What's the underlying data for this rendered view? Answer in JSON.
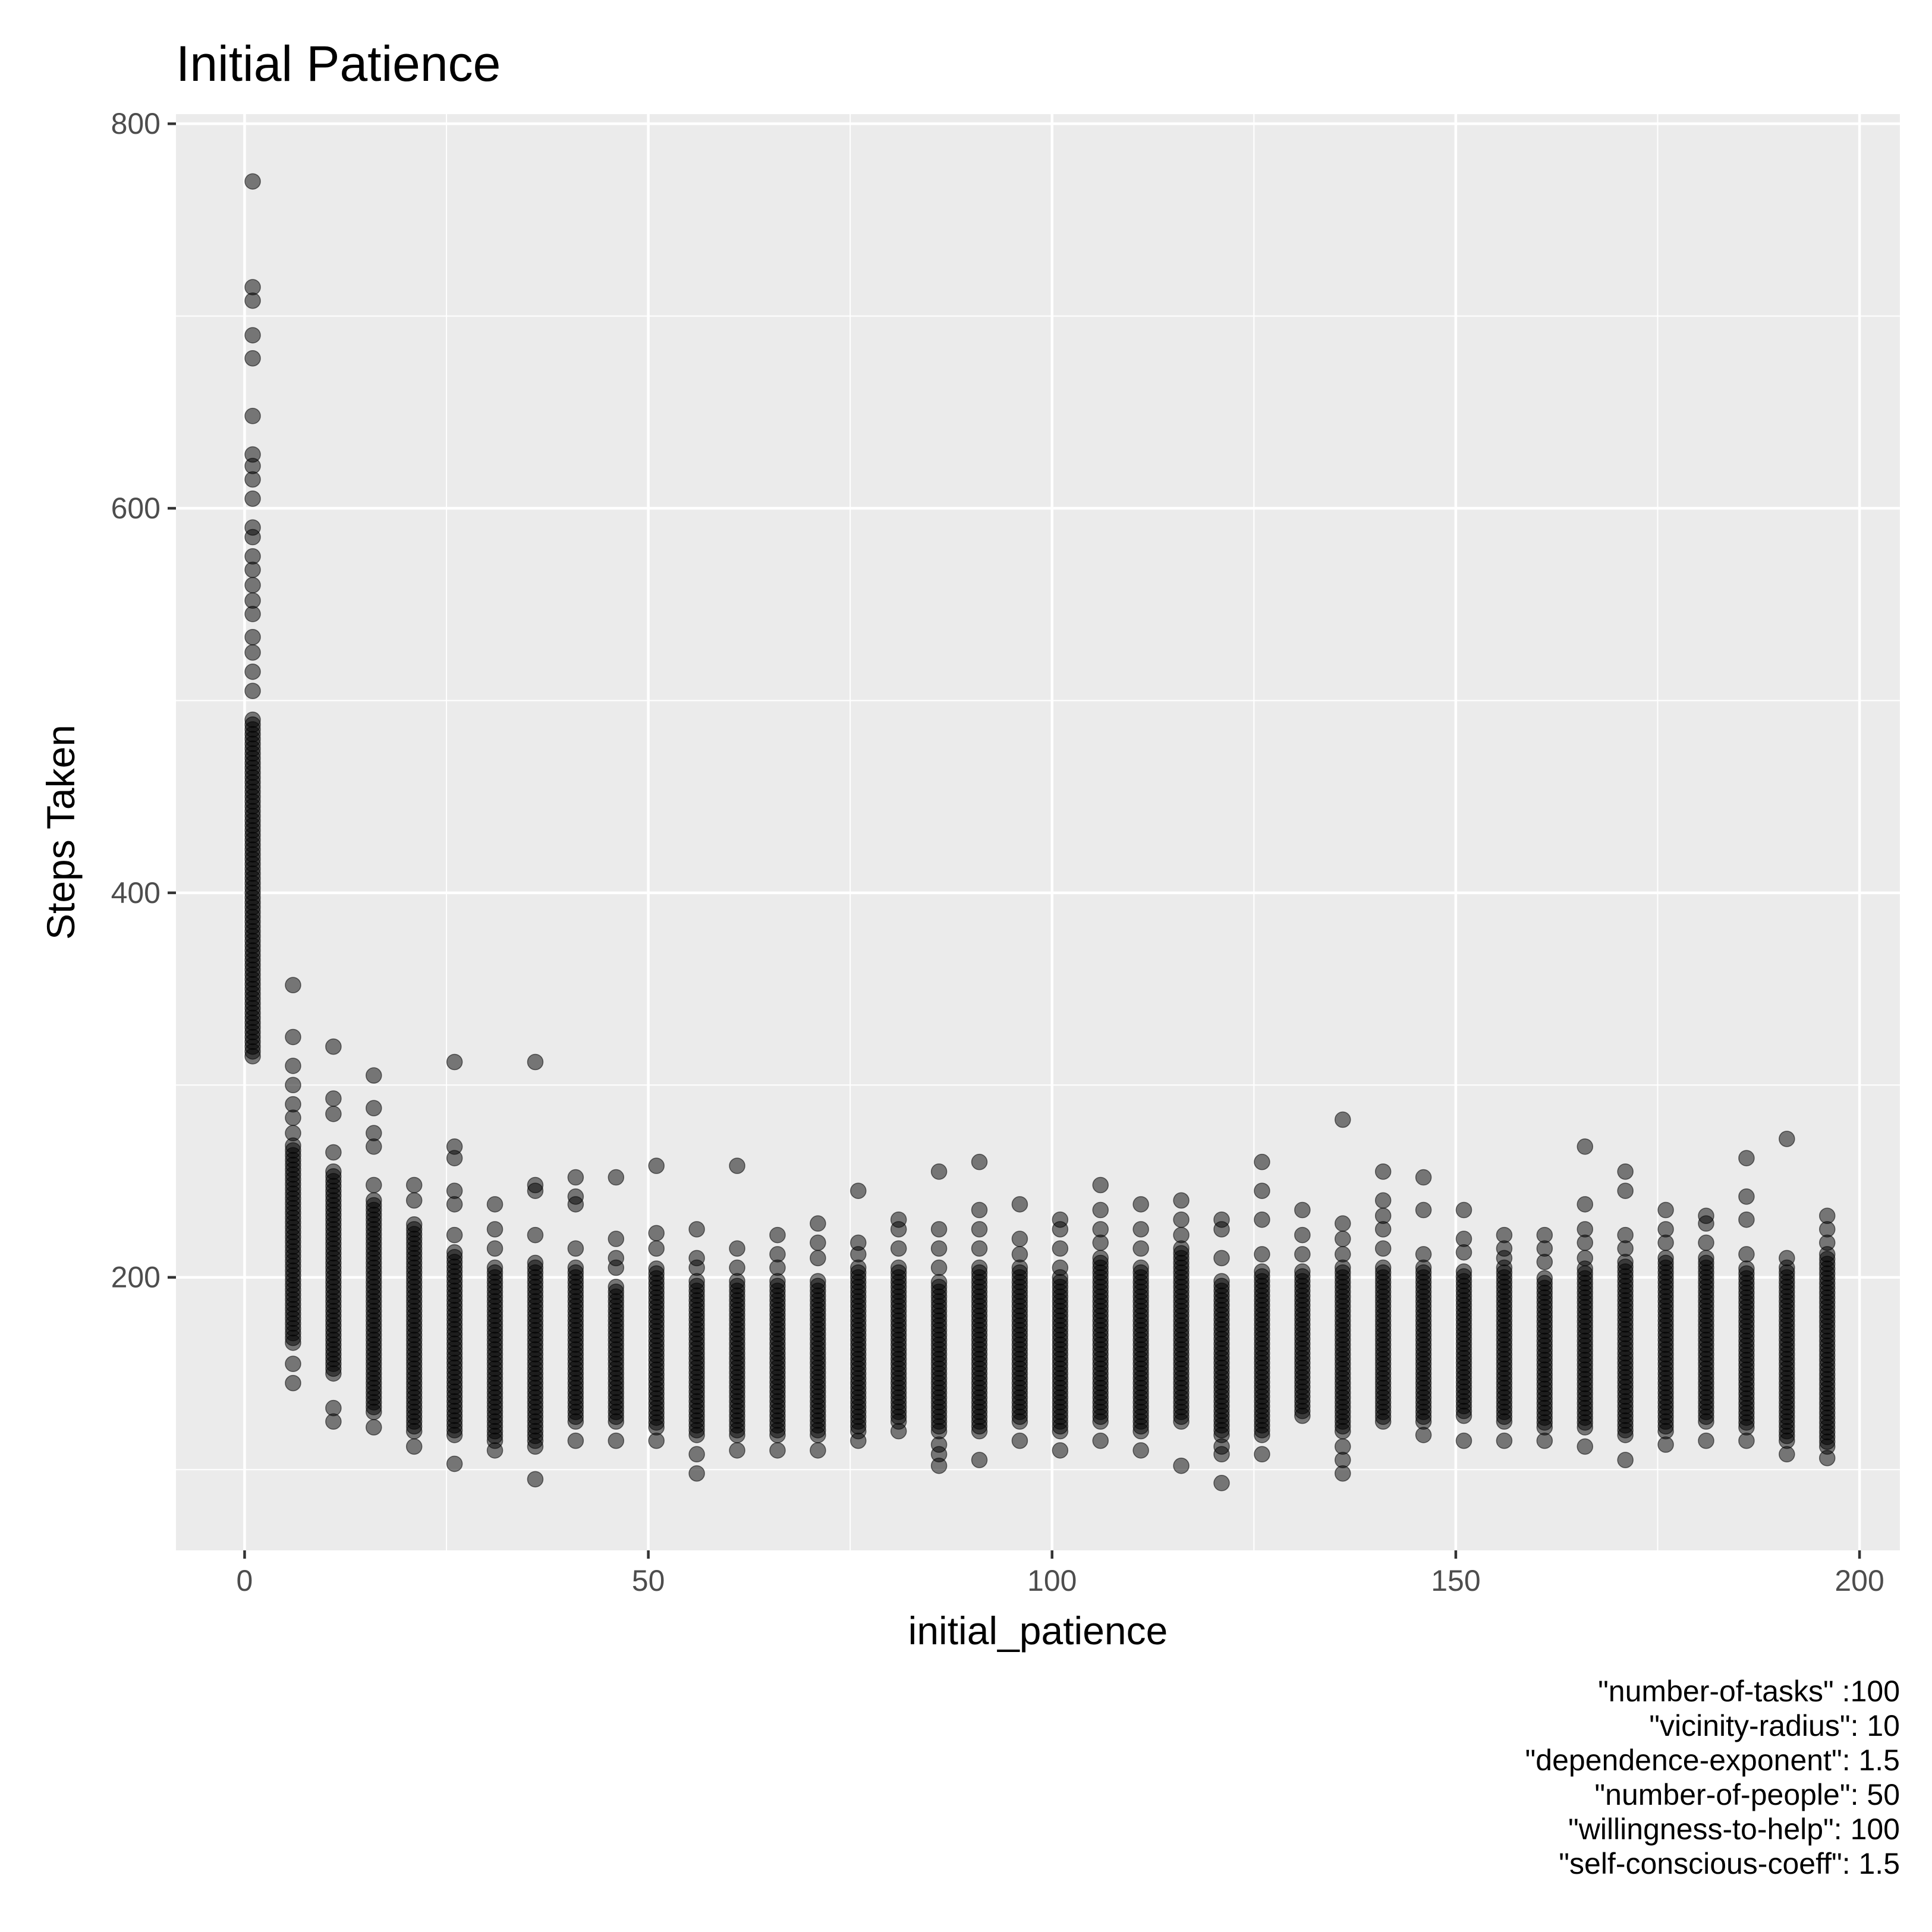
{
  "chart_data": {
    "type": "scatter",
    "title": "Initial Patience",
    "xlabel": "initial_patience",
    "ylabel": "Steps Taken",
    "xlim": [
      -8.5,
      205
    ],
    "ylim": [
      58,
      805
    ],
    "x_ticks": [
      0,
      50,
      100,
      150,
      200
    ],
    "y_ticks": [
      200,
      400,
      600,
      800
    ],
    "grid": true,
    "point_color": "#000000",
    "panel_background": "#ebebeb",
    "caption": [
      "\"number-of-tasks\" :100",
      "\"vicinity-radius\": 10",
      "\"dependence-exponent\": 1.5",
      "\"number-of-people\": 50",
      "\"willingness-to-help\": 100",
      "\"self-conscious-coeff\": 1.5"
    ],
    "groups": [
      {
        "x": 1,
        "low": 315,
        "high": 492,
        "extra": [
          505,
          515,
          525,
          533,
          545,
          552,
          560,
          568,
          575,
          585,
          590,
          605,
          615,
          622,
          628,
          648,
          678,
          690,
          708,
          715,
          770
        ]
      },
      {
        "x": 6,
        "low": 166,
        "high": 270,
        "extra": [
          145,
          155,
          275,
          283,
          290,
          300,
          310,
          325,
          352
        ]
      },
      {
        "x": 11,
        "low": 150,
        "high": 255,
        "extra": [
          125,
          132,
          265,
          285,
          293,
          320
        ]
      },
      {
        "x": 16,
        "low": 130,
        "high": 240,
        "extra": [
          122,
          248,
          268,
          275,
          288,
          305
        ]
      },
      {
        "x": 21,
        "low": 120,
        "high": 228,
        "extra": [
          112,
          240,
          248
        ]
      },
      {
        "x": 26,
        "low": 118,
        "high": 215,
        "extra": [
          103,
          222,
          238,
          245,
          262,
          268,
          312
        ]
      },
      {
        "x": 31,
        "low": 115,
        "high": 205,
        "extra": [
          110,
          215,
          225,
          238
        ]
      },
      {
        "x": 36,
        "low": 115,
        "high": 208,
        "extra": [
          95,
          112,
          222,
          245,
          248,
          312
        ]
      },
      {
        "x": 41,
        "low": 125,
        "high": 205,
        "extra": [
          115,
          215,
          238,
          242,
          252
        ]
      },
      {
        "x": 46,
        "low": 125,
        "high": 195,
        "extra": [
          115,
          205,
          210,
          220,
          252
        ]
      },
      {
        "x": 51,
        "low": 122,
        "high": 205,
        "extra": [
          115,
          215,
          223,
          258
        ]
      },
      {
        "x": 56,
        "low": 118,
        "high": 198,
        "extra": [
          98,
          108,
          205,
          210,
          225
        ]
      },
      {
        "x": 61,
        "low": 118,
        "high": 198,
        "extra": [
          110,
          205,
          215,
          258
        ]
      },
      {
        "x": 66,
        "low": 118,
        "high": 198,
        "extra": [
          110,
          205,
          212,
          222
        ]
      },
      {
        "x": 71,
        "low": 118,
        "high": 200,
        "extra": [
          110,
          210,
          218,
          228
        ]
      },
      {
        "x": 76,
        "low": 120,
        "high": 205,
        "extra": [
          115,
          212,
          218,
          245
        ]
      },
      {
        "x": 81,
        "low": 125,
        "high": 205,
        "extra": [
          120,
          215,
          225,
          230
        ]
      },
      {
        "x": 86,
        "low": 120,
        "high": 198,
        "extra": [
          102,
          108,
          113,
          205,
          215,
          225,
          255
        ]
      },
      {
        "x": 91,
        "low": 120,
        "high": 205,
        "extra": [
          105,
          215,
          225,
          235,
          260
        ]
      },
      {
        "x": 96,
        "low": 125,
        "high": 205,
        "extra": [
          115,
          212,
          220,
          238
        ]
      },
      {
        "x": 101,
        "low": 120,
        "high": 200,
        "extra": [
          110,
          205,
          215,
          225,
          230
        ]
      },
      {
        "x": 106,
        "low": 125,
        "high": 210,
        "extra": [
          115,
          218,
          225,
          235,
          248
        ]
      },
      {
        "x": 111,
        "low": 120,
        "high": 205,
        "extra": [
          110,
          215,
          225,
          238
        ]
      },
      {
        "x": 116,
        "low": 125,
        "high": 215,
        "extra": [
          102,
          222,
          230,
          240
        ]
      },
      {
        "x": 121,
        "low": 118,
        "high": 200,
        "extra": [
          93,
          108,
          112,
          210,
          225,
          230
        ]
      },
      {
        "x": 126,
        "low": 118,
        "high": 205,
        "extra": [
          108,
          212,
          230,
          245,
          260
        ]
      },
      {
        "x": 131,
        "low": 128,
        "high": 205,
        "extra": [
          212,
          222,
          235
        ]
      },
      {
        "x": 136,
        "low": 120,
        "high": 205,
        "extra": [
          98,
          105,
          112,
          212,
          220,
          228,
          282
        ]
      },
      {
        "x": 141,
        "low": 125,
        "high": 205,
        "extra": [
          215,
          225,
          232,
          240,
          255
        ]
      },
      {
        "x": 146,
        "low": 125,
        "high": 205,
        "extra": [
          118,
          212,
          235,
          252
        ]
      },
      {
        "x": 151,
        "low": 128,
        "high": 205,
        "extra": [
          115,
          213,
          220,
          235
        ]
      },
      {
        "x": 156,
        "low": 125,
        "high": 205,
        "extra": [
          115,
          210,
          215,
          222
        ]
      },
      {
        "x": 161,
        "low": 122,
        "high": 200,
        "extra": [
          115,
          208,
          215,
          222
        ]
      },
      {
        "x": 166,
        "low": 122,
        "high": 205,
        "extra": [
          112,
          210,
          218,
          225,
          238,
          268
        ]
      },
      {
        "x": 171,
        "low": 118,
        "high": 210,
        "extra": [
          105,
          215,
          222,
          245,
          255
        ]
      },
      {
        "x": 176,
        "low": 120,
        "high": 210,
        "extra": [
          113,
          218,
          225,
          235
        ]
      },
      {
        "x": 181,
        "low": 125,
        "high": 210,
        "extra": [
          115,
          218,
          228,
          232
        ]
      },
      {
        "x": 186,
        "low": 122,
        "high": 205,
        "extra": [
          115,
          212,
          230,
          242,
          262
        ]
      },
      {
        "x": 191,
        "low": 115,
        "high": 205,
        "extra": [
          108,
          210,
          272
        ]
      },
      {
        "x": 196,
        "low": 112,
        "high": 212,
        "extra": [
          106,
          218,
          225,
          232
        ]
      }
    ]
  }
}
